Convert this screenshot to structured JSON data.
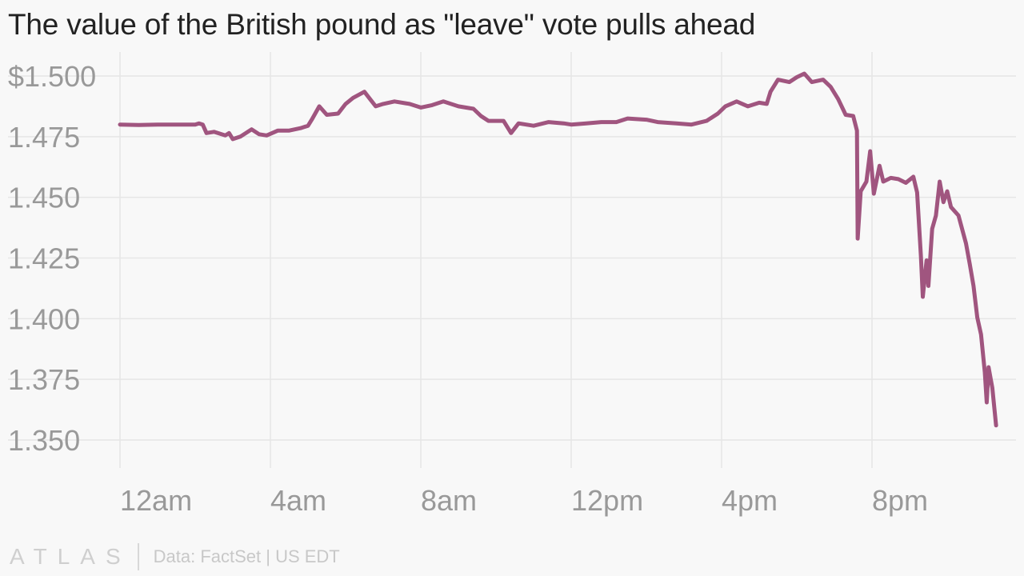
{
  "chart_data": {
    "type": "line",
    "title": "The value of the British pound as \"leave\" vote pulls ahead",
    "xlabel": "",
    "ylabel": "",
    "x_ticks": [
      {
        "label": "12am",
        "hour": 0
      },
      {
        "label": "4am",
        "hour": 4
      },
      {
        "label": "8am",
        "hour": 8
      },
      {
        "label": "12pm",
        "hour": 12
      },
      {
        "label": "4pm",
        "hour": 16
      },
      {
        "label": "8pm",
        "hour": 20
      }
    ],
    "y_ticks": [
      {
        "label": "$1.500",
        "value": 1.5
      },
      {
        "label": "1.475",
        "value": 1.475
      },
      {
        "label": "1.450",
        "value": 1.45
      },
      {
        "label": "1.425",
        "value": 1.425
      },
      {
        "label": "1.400",
        "value": 1.4
      },
      {
        "label": "1.375",
        "value": 1.375
      },
      {
        "label": "1.350",
        "value": 1.35
      }
    ],
    "xlim": [
      0,
      23
    ],
    "ylim": [
      1.35,
      1.5
    ],
    "grid": true,
    "line_color": "#a0557f",
    "series": [
      {
        "name": "",
        "points": [
          [
            0.0,
            1.48
          ],
          [
            0.5,
            1.4798
          ],
          [
            1.0,
            1.48
          ],
          [
            1.5,
            1.48
          ],
          [
            2.0,
            1.48
          ],
          [
            2.1,
            1.4805
          ],
          [
            2.2,
            1.48
          ],
          [
            2.3,
            1.4765
          ],
          [
            2.5,
            1.477
          ],
          [
            2.8,
            1.4755
          ],
          [
            2.9,
            1.4765
          ],
          [
            3.0,
            1.474
          ],
          [
            3.2,
            1.475
          ],
          [
            3.5,
            1.478
          ],
          [
            3.7,
            1.476
          ],
          [
            3.9,
            1.4755
          ],
          [
            4.2,
            1.4775
          ],
          [
            4.5,
            1.4775
          ],
          [
            4.8,
            1.4785
          ],
          [
            5.0,
            1.4795
          ],
          [
            5.1,
            1.482
          ],
          [
            5.3,
            1.4875
          ],
          [
            5.5,
            1.484
          ],
          [
            5.8,
            1.4845
          ],
          [
            6.0,
            1.4885
          ],
          [
            6.2,
            1.491
          ],
          [
            6.5,
            1.4935
          ],
          [
            6.6,
            1.4915
          ],
          [
            6.8,
            1.4875
          ],
          [
            7.0,
            1.4885
          ],
          [
            7.3,
            1.4895
          ],
          [
            7.7,
            1.4885
          ],
          [
            8.0,
            1.487
          ],
          [
            8.3,
            1.488
          ],
          [
            8.6,
            1.4895
          ],
          [
            9.0,
            1.4875
          ],
          [
            9.4,
            1.4865
          ],
          [
            9.6,
            1.4835
          ],
          [
            9.8,
            1.4815
          ],
          [
            10.2,
            1.4815
          ],
          [
            10.4,
            1.4765
          ],
          [
            10.6,
            1.4805
          ],
          [
            11.0,
            1.4795
          ],
          [
            11.4,
            1.481
          ],
          [
            11.8,
            1.4805
          ],
          [
            12.0,
            1.48
          ],
          [
            12.4,
            1.4805
          ],
          [
            12.8,
            1.481
          ],
          [
            13.2,
            1.481
          ],
          [
            13.5,
            1.4825
          ],
          [
            14.0,
            1.482
          ],
          [
            14.3,
            1.481
          ],
          [
            14.8,
            1.4805
          ],
          [
            15.2,
            1.48
          ],
          [
            15.6,
            1.4815
          ],
          [
            15.9,
            1.4845
          ],
          [
            16.1,
            1.4875
          ],
          [
            16.4,
            1.4895
          ],
          [
            16.7,
            1.4875
          ],
          [
            17.0,
            1.489
          ],
          [
            17.2,
            1.4885
          ],
          [
            17.3,
            1.4935
          ],
          [
            17.5,
            1.4985
          ],
          [
            17.8,
            1.4975
          ],
          [
            18.0,
            1.4995
          ],
          [
            18.2,
            1.501
          ],
          [
            18.4,
            1.4975
          ],
          [
            18.7,
            1.4985
          ],
          [
            18.9,
            1.4955
          ],
          [
            19.1,
            1.4905
          ],
          [
            19.3,
            1.484
          ],
          [
            19.5,
            1.4835
          ],
          [
            19.6,
            1.4775
          ],
          [
            19.62,
            1.433
          ],
          [
            19.7,
            1.4525
          ],
          [
            19.85,
            1.4565
          ],
          [
            19.95,
            1.469
          ],
          [
            20.05,
            1.4515
          ],
          [
            20.2,
            1.463
          ],
          [
            20.3,
            1.4565
          ],
          [
            20.5,
            1.458
          ],
          [
            20.7,
            1.4575
          ],
          [
            20.9,
            1.456
          ],
          [
            21.1,
            1.4585
          ],
          [
            21.2,
            1.452
          ],
          [
            21.3,
            1.426
          ],
          [
            21.35,
            1.409
          ],
          [
            21.45,
            1.424
          ],
          [
            21.5,
            1.4135
          ],
          [
            21.6,
            1.437
          ],
          [
            21.7,
            1.4425
          ],
          [
            21.8,
            1.4565
          ],
          [
            21.9,
            1.448
          ],
          [
            22.0,
            1.4525
          ],
          [
            22.1,
            1.446
          ],
          [
            22.3,
            1.4425
          ],
          [
            22.5,
            1.431
          ],
          [
            22.6,
            1.4225
          ],
          [
            22.7,
            1.4135
          ],
          [
            22.8,
            1.4005
          ],
          [
            22.9,
            1.3935
          ],
          [
            23.0,
            1.378
          ],
          [
            23.05,
            1.3655
          ],
          [
            23.1,
            1.38
          ],
          [
            23.2,
            1.3715
          ],
          [
            23.3,
            1.356
          ]
        ]
      }
    ]
  },
  "footer": {
    "logo": "ATLAS",
    "source": "Data: FactSet | US EDT"
  }
}
